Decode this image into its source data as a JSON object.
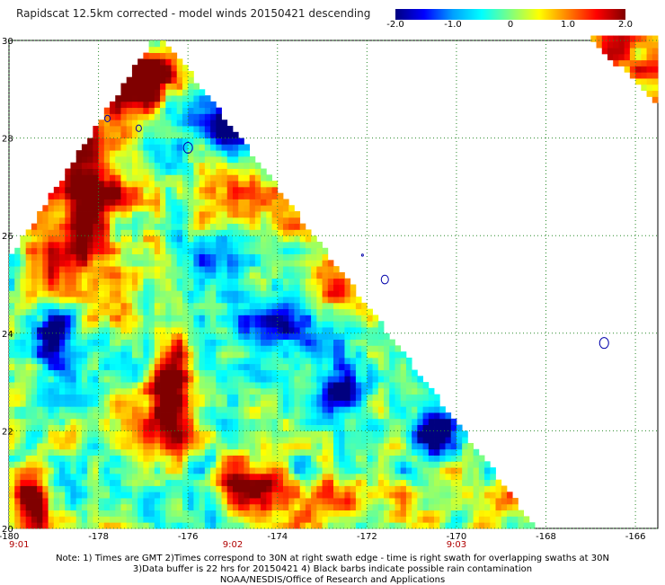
{
  "title": "Rapidscat 12.5km corrected - model winds 20150421 descending",
  "colorbar": {
    "ticks": [
      "-2.0",
      "-1.0",
      "0",
      "1.0",
      "2.0"
    ],
    "tick_values": [
      -2.0,
      -1.0,
      0,
      1.0,
      2.0
    ],
    "stops": [
      "#00007f",
      "#0000ff",
      "#00a0ff",
      "#00ffff",
      "#7fff7f",
      "#ffff00",
      "#ff8000",
      "#ff0000",
      "#800000"
    ]
  },
  "axes": {
    "lon_labels": [
      "-180",
      "-178",
      "-176",
      "-174",
      "-172",
      "-170",
      "-168",
      "-166"
    ],
    "lon_values": [
      -180,
      -178,
      -176,
      -174,
      -172,
      -170,
      -168,
      -166
    ],
    "lat_labels": [
      "20",
      "22",
      "24",
      "26",
      "28",
      "30"
    ],
    "lat_values": [
      20,
      22,
      24,
      26,
      28,
      30
    ],
    "lon_range": [
      -180,
      -165.5
    ],
    "lat_range": [
      20,
      30
    ],
    "grid": "dotted"
  },
  "times": [
    {
      "label": "9:01",
      "lon": -180
    },
    {
      "label": "9:02",
      "lon": -175
    },
    {
      "label": "9:03",
      "lon": -170
    }
  ],
  "notes": [
    "Note: 1) Times are GMT 2)Times correspond to 30N at right swath edge - time is right swath for overlapping swaths at 30N",
    "3)Data buffer is 22 hrs for 20150421 4) Black barbs indicate possible rain contamination",
    "NOAA/NESDIS/Office of Research and Applications"
  ],
  "map_data": {
    "variable": "wind speed difference (corrected - model)",
    "value_range": [
      -2.0,
      2.0
    ],
    "main_swath": {
      "lon": [
        -180,
        -168.2
      ],
      "lat": [
        20,
        30
      ],
      "shape": "triangle bounded on upper right by diagonal from (-176.5,30) to (-168.2,20)"
    },
    "corner_swath": {
      "lon": [
        -167.0,
        -165.5
      ],
      "lat": [
        28.6,
        30
      ],
      "dominant": "positive"
    }
  }
}
